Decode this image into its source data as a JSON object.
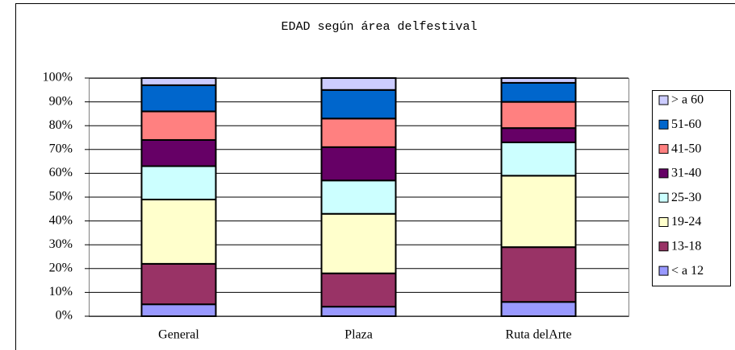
{
  "chart_data": {
    "type": "stacked_bar",
    "title": "EDAD según área delfestival",
    "categories": [
      "General",
      "Plaza",
      "Ruta delArte"
    ],
    "series": [
      {
        "name": "< a 12",
        "color": "#9999ff",
        "values": [
          5,
          4,
          6
        ]
      },
      {
        "name": "13-18",
        "color": "#993366",
        "values": [
          17,
          14,
          23
        ]
      },
      {
        "name": "19-24",
        "color": "#ffffcc",
        "values": [
          27,
          25,
          30
        ]
      },
      {
        "name": "25-30",
        "color": "#ccffff",
        "values": [
          14,
          14,
          14
        ]
      },
      {
        "name": "31-40",
        "color": "#660066",
        "values": [
          11,
          14,
          6
        ]
      },
      {
        "name": "41-50",
        "color": "#ff8080",
        "values": [
          12,
          12,
          11
        ]
      },
      {
        "name": "51-60",
        "color": "#0066cc",
        "values": [
          11,
          12,
          8
        ]
      },
      {
        "name": "> a 60",
        "color": "#ccccff",
        "values": [
          3,
          5,
          2
        ]
      }
    ],
    "ylim": [
      0,
      100
    ],
    "yticks": [
      {
        "value": 0,
        "label": "0%"
      },
      {
        "value": 10,
        "label": "10%"
      },
      {
        "value": 20,
        "label": "20%"
      },
      {
        "value": 30,
        "label": "30%"
      },
      {
        "value": 40,
        "label": "40%"
      },
      {
        "value": 50,
        "label": "50%"
      },
      {
        "value": 60,
        "label": "60%"
      },
      {
        "value": 70,
        "label": "70%"
      },
      {
        "value": 80,
        "label": "80%"
      },
      {
        "value": 90,
        "label": "90%"
      },
      {
        "value": 100,
        "label": "100%"
      }
    ],
    "grid": true,
    "legend": "right"
  }
}
